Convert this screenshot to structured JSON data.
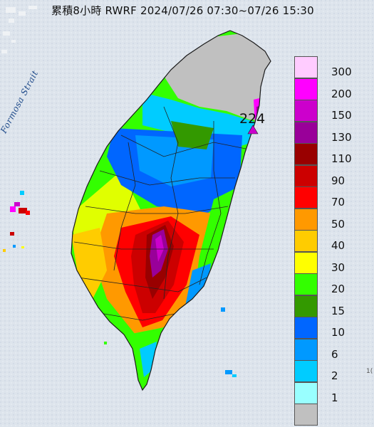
{
  "title": "累積8小時 RWRF 2024/07/26 07:30~07/26 15:30",
  "map_label": "Formosa Strait",
  "max_value": "224",
  "corner_text": "1(",
  "legend": [
    {
      "label": "300",
      "color": "#ffccff"
    },
    {
      "label": "200",
      "color": "#ff00ff"
    },
    {
      "label": "150",
      "color": "#cc00cc"
    },
    {
      "label": "130",
      "color": "#990099"
    },
    {
      "label": "110",
      "color": "#990000"
    },
    {
      "label": "90",
      "color": "#cc0000"
    },
    {
      "label": "70",
      "color": "#ff0000"
    },
    {
      "label": "50",
      "color": "#ff9900"
    },
    {
      "label": "40",
      "color": "#ffcc00"
    },
    {
      "label": "30",
      "color": "#ffff00"
    },
    {
      "label": "20",
      "color": "#33ff00"
    },
    {
      "label": "15",
      "color": "#339900"
    },
    {
      "label": "10",
      "color": "#0066ff"
    },
    {
      "label": "6",
      "color": "#0099ff"
    },
    {
      "label": "2",
      "color": "#00ccff"
    },
    {
      "label": "1",
      "color": "#99ffff"
    },
    {
      "label": "",
      "color": "#c0c0c0"
    }
  ]
}
